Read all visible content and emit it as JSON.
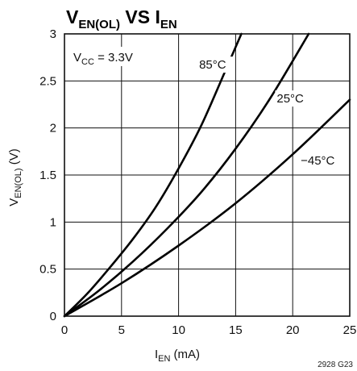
{
  "chart_data": {
    "type": "line",
    "title": {
      "main": "V",
      "main_sub": "EN(OL)",
      "mid": " VS I",
      "end_sub": "EN"
    },
    "xlabel": {
      "main": "I",
      "sub": "EN",
      "rest": " (mA)"
    },
    "ylabel": {
      "main": "V",
      "sub": "EN(OL)",
      "rest": " (V)"
    },
    "xlim": [
      0,
      25
    ],
    "ylim": [
      0,
      3
    ],
    "x_ticks": [
      "0",
      "5",
      "10",
      "15",
      "20",
      "25"
    ],
    "y_ticks": [
      "0",
      "0.5",
      "1",
      "1.5",
      "2",
      "2.5",
      "3"
    ],
    "grid": true,
    "annotation": {
      "main": "V",
      "sub": "CC",
      "rest": " = 3.3V"
    },
    "series": [
      {
        "name": "85°C",
        "x": [
          0,
          2,
          4,
          6,
          8,
          10,
          12,
          14,
          15.5
        ],
        "y": [
          0,
          0.24,
          0.52,
          0.82,
          1.16,
          1.57,
          2.03,
          2.58,
          3.0
        ]
      },
      {
        "name": "25°C",
        "x": [
          0,
          3,
          6,
          9,
          12,
          15,
          18,
          21.4
        ],
        "y": [
          0,
          0.27,
          0.58,
          0.93,
          1.32,
          1.78,
          2.31,
          3.0
        ]
      },
      {
        "name": "−45°C",
        "x": [
          0,
          5,
          10,
          15,
          20,
          25
        ],
        "y": [
          0,
          0.35,
          0.75,
          1.2,
          1.72,
          2.3
        ]
      }
    ],
    "source_code": "2928 G23"
  }
}
